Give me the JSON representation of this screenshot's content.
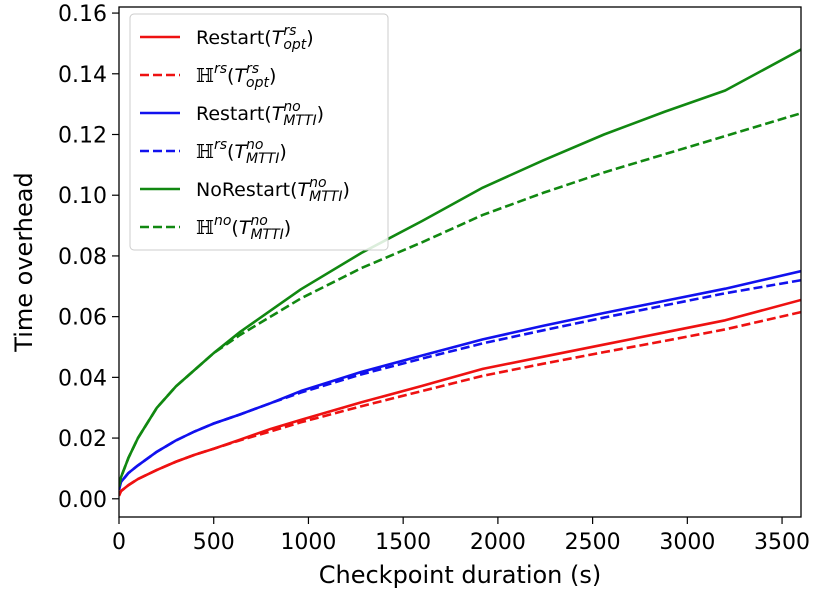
{
  "chart_data": {
    "type": "line",
    "xlabel": "Checkpoint duration (s)",
    "ylabel": "Time overhead",
    "xlim": [
      0,
      3600
    ],
    "ylim": [
      -0.006,
      0.162
    ],
    "xticks": [
      0,
      500,
      1000,
      1500,
      2000,
      2500,
      3000,
      3500
    ],
    "xtick_labels": [
      "0",
      "500",
      "1000",
      "1500",
      "2000",
      "2500",
      "3000",
      "3500"
    ],
    "yticks": [
      0.0,
      0.02,
      0.04,
      0.06,
      0.08,
      0.1,
      0.12,
      0.14,
      0.16
    ],
    "ytick_labels": [
      "0.00",
      "0.02",
      "0.04",
      "0.06",
      "0.08",
      "0.10",
      "0.12",
      "0.14",
      "0.16"
    ],
    "grid": false,
    "legend_position": "top-left",
    "series": [
      {
        "key": "restart_opt",
        "legend": {
          "prefix": "Restart(",
          "sym": "T",
          "sup": "rs",
          "sub": "opt",
          "suffix": ")"
        },
        "color": "#ee1111",
        "dash": "solid",
        "x": [
          0,
          10,
          50,
          100,
          200,
          300,
          400,
          500,
          640,
          800,
          960,
          1280,
          1600,
          1920,
          2240,
          2560,
          2880,
          3200,
          3600
        ],
        "y": [
          0.001,
          0.0025,
          0.0045,
          0.0065,
          0.0095,
          0.0122,
          0.0145,
          0.0165,
          0.0195,
          0.023,
          0.026,
          0.0318,
          0.0372,
          0.0428,
          0.0468,
          0.0508,
          0.0548,
          0.0588,
          0.0655
        ]
      },
      {
        "key": "H_rs_opt",
        "legend": {
          "prefix": "",
          "sym": "H",
          "sup1": "rs",
          "mid": "(T",
          "sup": "rs",
          "sub": "opt",
          "suffix": ")"
        },
        "color": "#ee1111",
        "dash": "dashed",
        "x": [
          0,
          10,
          50,
          100,
          200,
          300,
          400,
          500,
          640,
          800,
          960,
          1280,
          1600,
          1920,
          2240,
          2560,
          2880,
          3200,
          3600
        ],
        "y": [
          0.001,
          0.0025,
          0.0045,
          0.0065,
          0.0095,
          0.0122,
          0.0145,
          0.0165,
          0.0193,
          0.0222,
          0.0252,
          0.0305,
          0.0355,
          0.0405,
          0.0445,
          0.0483,
          0.052,
          0.0558,
          0.0615
        ]
      },
      {
        "key": "restart_mtti",
        "legend": {
          "prefix": "Restart(",
          "sym": "T",
          "sup": "no",
          "sub": "MTTI",
          "suffix": ")"
        },
        "color": "#1111ee",
        "dash": "solid",
        "x": [
          0,
          10,
          50,
          100,
          200,
          300,
          400,
          500,
          640,
          800,
          960,
          1280,
          1600,
          1920,
          2240,
          2560,
          2880,
          3200,
          3600
        ],
        "y": [
          0.003,
          0.0055,
          0.0085,
          0.011,
          0.0155,
          0.0192,
          0.0222,
          0.0248,
          0.0278,
          0.0315,
          0.0355,
          0.0418,
          0.0472,
          0.0525,
          0.057,
          0.0612,
          0.0652,
          0.0692,
          0.075
        ]
      },
      {
        "key": "H_rs_mtti",
        "legend": {
          "prefix": "",
          "sym": "H",
          "sup1": "rs",
          "mid": "(T",
          "sup": "no",
          "sub": "MTTI",
          "suffix": ")"
        },
        "color": "#1111ee",
        "dash": "dashed",
        "x": [
          0,
          10,
          50,
          100,
          200,
          300,
          400,
          500,
          640,
          800,
          960,
          1280,
          1600,
          1920,
          2240,
          2560,
          2880,
          3200,
          3600
        ],
        "y": [
          0.003,
          0.0055,
          0.0085,
          0.011,
          0.0155,
          0.0192,
          0.0222,
          0.0248,
          0.0278,
          0.0315,
          0.035,
          0.041,
          0.0462,
          0.0512,
          0.0555,
          0.0597,
          0.0637,
          0.0677,
          0.072
        ]
      },
      {
        "key": "norestart_mtti",
        "legend": {
          "prefix": "NoRestart(",
          "sym": "T",
          "sup": "no",
          "sub": "MTTI",
          "suffix": ")"
        },
        "color": "#118811",
        "dash": "solid",
        "x": [
          0,
          10,
          50,
          100,
          200,
          300,
          400,
          500,
          640,
          800,
          960,
          1280,
          1600,
          1920,
          2240,
          2560,
          2880,
          3200,
          3600
        ],
        "y": [
          0.004,
          0.007,
          0.0135,
          0.02,
          0.03,
          0.037,
          0.0425,
          0.048,
          0.055,
          0.062,
          0.069,
          0.081,
          0.0915,
          0.1025,
          0.1115,
          0.12,
          0.1275,
          0.1345,
          0.148
        ]
      },
      {
        "key": "H_no_mtti",
        "legend": {
          "prefix": "",
          "sym": "H",
          "sup1": "no",
          "mid": "(T",
          "sup": "no",
          "sub": "MTTI",
          "suffix": ")"
        },
        "color": "#118811",
        "dash": "dashed",
        "x": [
          0,
          10,
          50,
          100,
          200,
          300,
          400,
          500,
          640,
          800,
          960,
          1280,
          1600,
          1920,
          2240,
          2560,
          2880,
          3200,
          3600
        ],
        "y": [
          0.004,
          0.007,
          0.0135,
          0.02,
          0.03,
          0.037,
          0.0425,
          0.048,
          0.054,
          0.06,
          0.066,
          0.076,
          0.0845,
          0.0935,
          0.1008,
          0.1075,
          0.1135,
          0.1195,
          0.127
        ]
      }
    ]
  }
}
